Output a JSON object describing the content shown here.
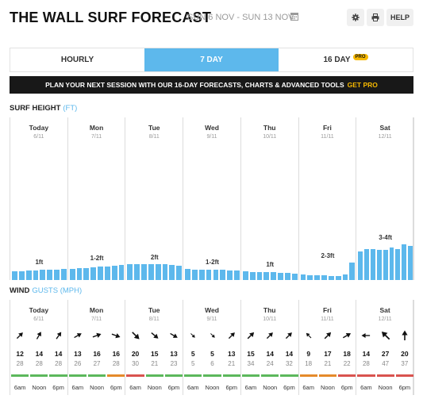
{
  "header": {
    "title": "THE WALL SURF FORECAST",
    "date_range": "SUN 6 NOV - SUN 13 NOV",
    "help_label": "HELP"
  },
  "tabs": [
    {
      "label": "HOURLY",
      "active": false
    },
    {
      "label": "7 DAY",
      "active": true
    },
    {
      "label": "16 DAY",
      "active": false,
      "badge": "PRO"
    }
  ],
  "promo": {
    "text": "PLAN YOUR NEXT SESSION WITH OUR 16-DAY FORECASTS, CHARTS & ADVANCED TOOLS",
    "cta": "GET PRO"
  },
  "surf": {
    "title": "SURF HEIGHT",
    "unit": "(FT)"
  },
  "wind": {
    "title": "WIND",
    "unit": "GUSTS (MPH)",
    "times": [
      "6am",
      "Noon",
      "6pm"
    ]
  },
  "colors": {
    "accent": "#5db8ec",
    "pro": "#f6b800",
    "wind_green": "#5cb85c",
    "wind_orange": "#e58a2b",
    "wind_red": "#d9534f"
  },
  "days": [
    {
      "name": "Today",
      "date": "6/11",
      "surf_label": "1ft",
      "surf": [
        0.8,
        0.8,
        0.85,
        0.85,
        0.9,
        0.95,
        0.95,
        1.0
      ],
      "wind": [
        {
          "speed": "12",
          "gust": "28",
          "dir": 45,
          "scale": 0.85,
          "color": "green"
        },
        {
          "speed": "14",
          "gust": "28",
          "dir": 30,
          "scale": 0.85,
          "color": "green"
        },
        {
          "speed": "14",
          "gust": "28",
          "dir": 35,
          "scale": 0.85,
          "color": "green"
        }
      ]
    },
    {
      "name": "Mon",
      "date": "7/11",
      "surf_label": "1-2ft",
      "surf": [
        1.0,
        1.05,
        1.1,
        1.15,
        1.2,
        1.25,
        1.3,
        1.35
      ],
      "wind": [
        {
          "speed": "13",
          "gust": "26",
          "dir": 60,
          "scale": 0.85,
          "color": "green"
        },
        {
          "speed": "16",
          "gust": "27",
          "dir": 70,
          "scale": 0.9,
          "color": "green"
        },
        {
          "speed": "16",
          "gust": "28",
          "dir": 110,
          "scale": 0.9,
          "color": "orange"
        }
      ]
    },
    {
      "name": "Tue",
      "date": "8/11",
      "surf_label": "2ft",
      "surf": [
        1.4,
        1.4,
        1.45,
        1.45,
        1.4,
        1.4,
        1.35,
        1.3
      ],
      "wind": [
        {
          "speed": "20",
          "gust": "30",
          "dir": 135,
          "scale": 1.0,
          "color": "red"
        },
        {
          "speed": "15",
          "gust": "21",
          "dir": 130,
          "scale": 0.9,
          "color": "green"
        },
        {
          "speed": "13",
          "gust": "23",
          "dir": 120,
          "scale": 0.85,
          "color": "green"
        }
      ]
    },
    {
      "name": "Wed",
      "date": "9/11",
      "surf_label": "1-2ft",
      "surf": [
        1.0,
        0.95,
        0.95,
        0.95,
        0.9,
        0.9,
        0.85,
        0.85
      ],
      "wind": [
        {
          "speed": "5",
          "gust": "5",
          "dir": 135,
          "scale": 0.6,
          "color": "green"
        },
        {
          "speed": "5",
          "gust": "6",
          "dir": 135,
          "scale": 0.6,
          "color": "green"
        },
        {
          "speed": "13",
          "gust": "21",
          "dir": 45,
          "scale": 0.85,
          "color": "green"
        }
      ]
    },
    {
      "name": "Thu",
      "date": "10/11",
      "surf_label": "1ft",
      "surf": [
        0.8,
        0.75,
        0.75,
        0.7,
        0.7,
        0.65,
        0.65,
        0.6
      ],
      "wind": [
        {
          "speed": "15",
          "gust": "34",
          "dir": 45,
          "scale": 0.9,
          "color": "green"
        },
        {
          "speed": "14",
          "gust": "24",
          "dir": 45,
          "scale": 0.85,
          "color": "green"
        },
        {
          "speed": "14",
          "gust": "32",
          "dir": 45,
          "scale": 0.85,
          "color": "green"
        }
      ]
    },
    {
      "name": "Fri",
      "date": "11/11",
      "surf_label": "2-3ft",
      "surf": [
        0.5,
        0.45,
        0.45,
        0.4,
        0.35,
        0.35,
        0.5,
        1.6
      ],
      "wind": [
        {
          "speed": "9",
          "gust": "18",
          "dir": 315,
          "scale": 0.7,
          "color": "orange"
        },
        {
          "speed": "17",
          "gust": "21",
          "dir": 45,
          "scale": 0.9,
          "color": "orange"
        },
        {
          "speed": "18",
          "gust": "22",
          "dir": 60,
          "scale": 0.9,
          "color": "red"
        }
      ]
    },
    {
      "name": "Sat",
      "date": "12/11",
      "surf_label": "3-4ft",
      "surf": [
        2.6,
        2.8,
        2.8,
        2.7,
        2.75,
        2.9,
        2.8,
        3.2,
        3.1
      ],
      "wind": [
        {
          "speed": "14",
          "gust": "28",
          "dir": 270,
          "scale": 0.85,
          "color": "red"
        },
        {
          "speed": "27",
          "gust": "47",
          "dir": 315,
          "scale": 1.1,
          "color": "red"
        },
        {
          "speed": "20",
          "gust": "37",
          "dir": 0,
          "scale": 1.0,
          "color": "red"
        }
      ]
    }
  ]
}
